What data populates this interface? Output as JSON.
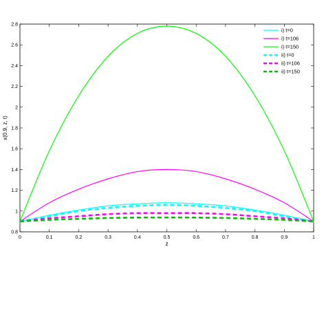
{
  "chart_data": {
    "type": "line",
    "xlabel": "z",
    "ylabel": "x(0.9, z, t)",
    "xlim": [
      0,
      1
    ],
    "ylim": [
      0.8,
      2.8
    ],
    "xticks": [
      0,
      0.1,
      0.2,
      0.3,
      0.4,
      0.5,
      0.6,
      0.7,
      0.8,
      0.9,
      1
    ],
    "yticks": [
      0.8,
      1,
      1.2,
      1.4,
      1.6,
      1.8,
      2,
      2.2,
      2.4,
      2.6,
      2.8
    ],
    "xtick_labels": [
      "0",
      "0.1",
      "0.2",
      "0.3",
      "0.4",
      "0.5",
      "0.6",
      "0.7",
      "0.8",
      "0.9",
      "1"
    ],
    "ytick_labels": [
      "0.8",
      "1",
      "1.2",
      "1.4",
      "1.6",
      "1.8",
      "2",
      "2.2",
      "2.4",
      "2.6",
      "2.8"
    ],
    "grid": false,
    "legend_position": "top-right",
    "x": [
      0,
      0.1,
      0.2,
      0.3,
      0.4,
      0.5,
      0.6,
      0.7,
      0.8,
      0.9,
      1
    ],
    "series": [
      {
        "name": "i) t=0",
        "color": "#00ffff",
        "style": "solid",
        "values": [
          0.9,
          0.96,
          1.01,
          1.05,
          1.07,
          1.08,
          1.07,
          1.05,
          1.01,
          0.96,
          0.9
        ]
      },
      {
        "name": "i) t=106",
        "color": "#ff00ff",
        "style": "solid",
        "values": [
          0.9,
          1.08,
          1.21,
          1.31,
          1.38,
          1.4,
          1.38,
          1.31,
          1.21,
          1.08,
          0.9
        ]
      },
      {
        "name": "i) t=150",
        "color": "#00ff00",
        "style": "solid",
        "values": [
          0.9,
          1.58,
          2.11,
          2.49,
          2.71,
          2.78,
          2.71,
          2.49,
          2.11,
          1.58,
          0.9
        ]
      },
      {
        "name": "ii) t=0",
        "color": "#00ffff",
        "style": "dashed",
        "values": [
          0.9,
          0.95,
          1.0,
          1.03,
          1.05,
          1.06,
          1.05,
          1.03,
          1.0,
          0.95,
          0.9
        ]
      },
      {
        "name": "ii) t=106",
        "color": "#ff00ff",
        "style": "dashed",
        "values": [
          0.9,
          0.93,
          0.95,
          0.97,
          0.98,
          0.98,
          0.98,
          0.97,
          0.95,
          0.93,
          0.9
        ]
      },
      {
        "name": "ii) t=150",
        "color": "#00c000",
        "style": "dashed",
        "values": [
          0.9,
          0.915,
          0.925,
          0.933,
          0.937,
          0.938,
          0.937,
          0.933,
          0.925,
          0.915,
          0.9
        ]
      }
    ]
  }
}
